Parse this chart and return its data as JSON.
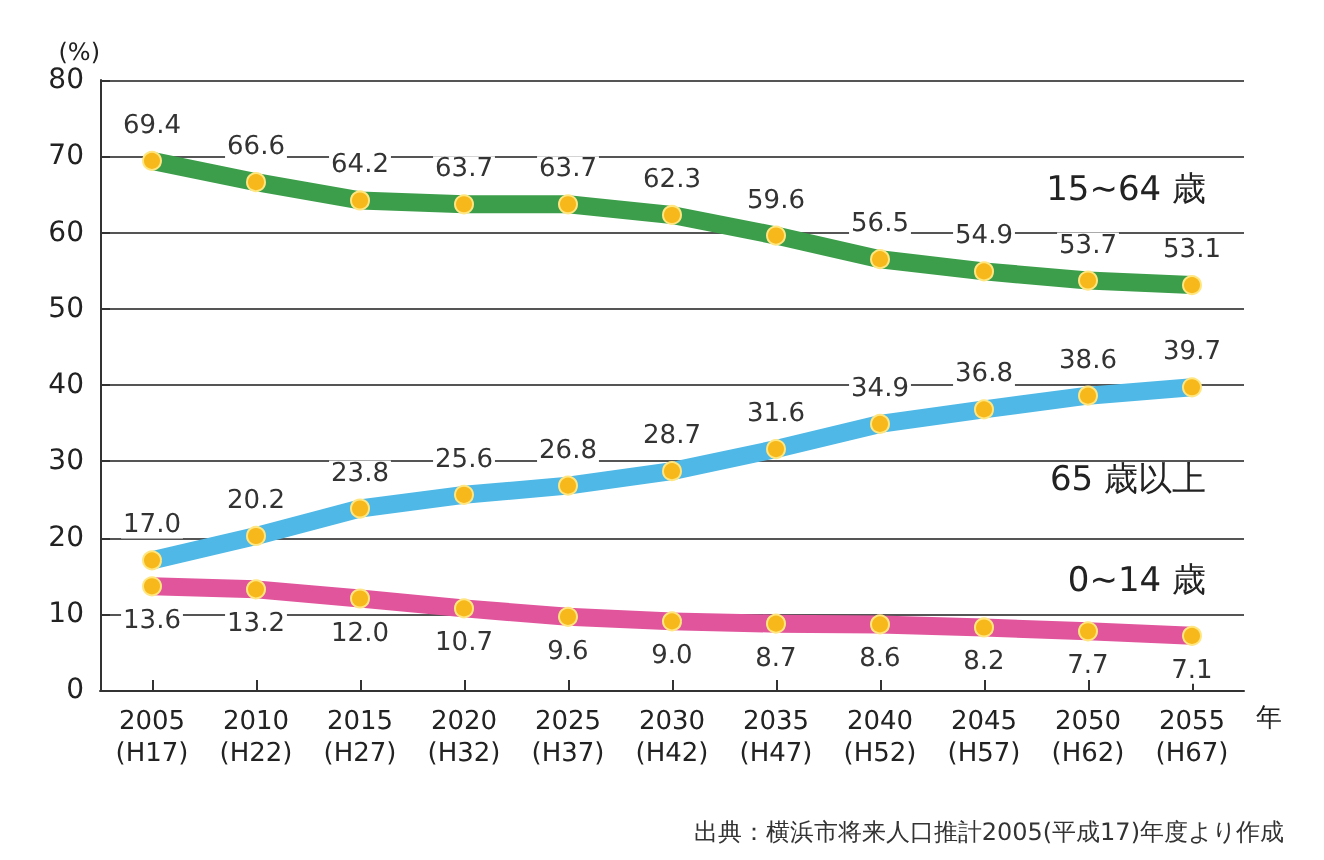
{
  "chart_data": {
    "type": "line",
    "ylabel": "(%)",
    "xlabel": "年",
    "categories": [
      "2005\n(H17)",
      "2010\n(H22)",
      "2015\n(H27)",
      "2020\n(H32)",
      "2025\n(H37)",
      "2030\n(H42)",
      "2035\n(H47)",
      "2040\n(H52)",
      "2045\n(H57)",
      "2050\n(H62)",
      "2055\n(H67)"
    ],
    "series": [
      {
        "name": "15~64 歳",
        "color": "#3c9e4a",
        "values": [
          69.4,
          66.6,
          64.2,
          63.7,
          63.7,
          62.3,
          59.6,
          56.5,
          54.9,
          53.7,
          53.1
        ],
        "value_labels": [
          "69.4",
          "66.6",
          "64.2",
          "63.7",
          "63.7",
          "62.3",
          "59.6",
          "56.5",
          "54.9",
          "53.7",
          "53.1"
        ]
      },
      {
        "name": "65 歳以上",
        "color": "#4fb8e6",
        "values": [
          17.0,
          20.2,
          23.8,
          25.6,
          26.8,
          28.7,
          31.6,
          34.9,
          36.8,
          38.6,
          39.7
        ],
        "value_labels": [
          "17.0",
          "20.2",
          "23.8",
          "25.6",
          "26.8",
          "28.7",
          "31.6",
          "34.9",
          "36.8",
          "38.6",
          "39.7"
        ]
      },
      {
        "name": "0~14 歳",
        "color": "#e0559c",
        "values": [
          13.6,
          13.2,
          12.0,
          10.7,
          9.6,
          9.0,
          8.7,
          8.6,
          8.2,
          7.7,
          7.1
        ],
        "value_labels": [
          "13.6",
          "13.2",
          "12.0",
          "10.7",
          "9.6",
          "9.0",
          "8.7",
          "8.6",
          "8.2",
          "7.7",
          "7.1"
        ]
      }
    ],
    "ylim": [
      0,
      80
    ],
    "yticks": [
      0,
      10,
      20,
      30,
      40,
      50,
      60,
      70,
      80
    ],
    "grid": "y",
    "marker": "circle",
    "legend": false,
    "annotations": [
      "出典：横浜市将来人口推計2005(平成17)年度より作成"
    ]
  }
}
